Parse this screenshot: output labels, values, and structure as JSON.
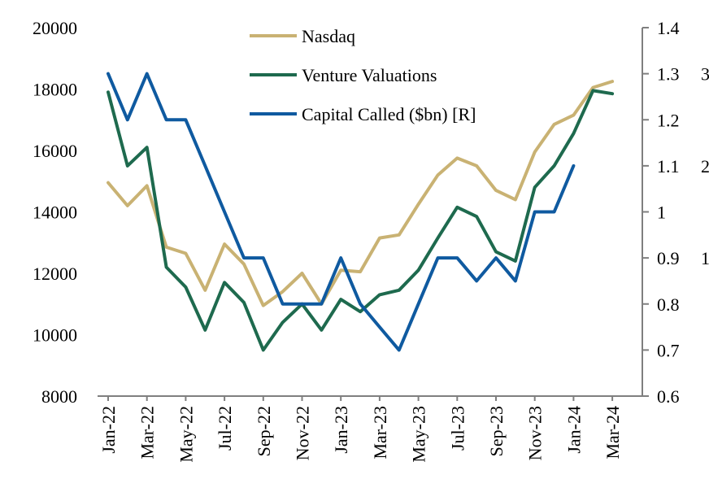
{
  "chart_data": {
    "type": "line",
    "categories": [
      "Jan-22",
      "Feb-22",
      "Mar-22",
      "Apr-22",
      "May-22",
      "Jun-22",
      "Jul-22",
      "Aug-22",
      "Sep-22",
      "Oct-22",
      "Nov-22",
      "Dec-22",
      "Jan-23",
      "Feb-23",
      "Mar-23",
      "Apr-23",
      "May-23",
      "Jun-23",
      "Jul-23",
      "Aug-23",
      "Sep-23",
      "Oct-23",
      "Nov-23",
      "Dec-23",
      "Jan-24",
      "Feb-24",
      "Mar-24"
    ],
    "x_tick_labels": [
      "Jan-22",
      "Mar-22",
      "May-22",
      "Jul-22",
      "Sep-22",
      "Nov-22",
      "Jan-23",
      "Mar-23",
      "May-23",
      "Jul-23",
      "Sep-23",
      "Nov-23",
      "Jan-24",
      "Mar-24"
    ],
    "series": [
      {
        "name": "Nasdaq",
        "axis": "left",
        "color": "#c9b273",
        "values": [
          14950,
          14200,
          14850,
          12850,
          12650,
          11450,
          12950,
          12300,
          10950,
          11400,
          12000,
          11000,
          12100,
          12050,
          13150,
          13250,
          14250,
          15200,
          15750,
          15500,
          14700,
          14400,
          15950,
          16850,
          17150,
          18050,
          18250
        ]
      },
      {
        "name": "Venture Valuations",
        "axis": "left",
        "color": "#1e6a4e",
        "values": [
          17900,
          15500,
          16100,
          12200,
          11550,
          10150,
          11700,
          11050,
          9500,
          10400,
          11000,
          10150,
          11150,
          10750,
          11300,
          11450,
          12100,
          13150,
          14150,
          13850,
          12700,
          12400,
          14800,
          15500,
          16550,
          17950,
          17850
        ]
      },
      {
        "name": "Capital Called ($bn) [R]",
        "axis": "right",
        "color": "#0f5aa0",
        "values": [
          1.3,
          1.2,
          1.3,
          1.2,
          1.2,
          1.1,
          1.0,
          0.9,
          0.9,
          0.8,
          0.8,
          0.8,
          0.9,
          0.8,
          0.75,
          0.7,
          0.8,
          0.9,
          0.9,
          0.85,
          0.9,
          0.85,
          1.0,
          1.0,
          1.1,
          null,
          null
        ]
      }
    ],
    "y_left": {
      "ylim": [
        8000,
        20000
      ],
      "ticks": [
        8000,
        10000,
        12000,
        14000,
        16000,
        18000,
        20000
      ]
    },
    "y_right": {
      "ylim": [
        0.6,
        1.4
      ],
      "ticks": [
        "0.6",
        "0.7",
        "0.8",
        "0.9",
        "1",
        "1.1",
        "1.2",
        "1.3",
        "1.4"
      ]
    },
    "cut_off_right_labels": [
      "3",
      "2",
      "1"
    ],
    "legend_position": "top-center",
    "grid": false,
    "axis_color": "#7f7f7f"
  }
}
